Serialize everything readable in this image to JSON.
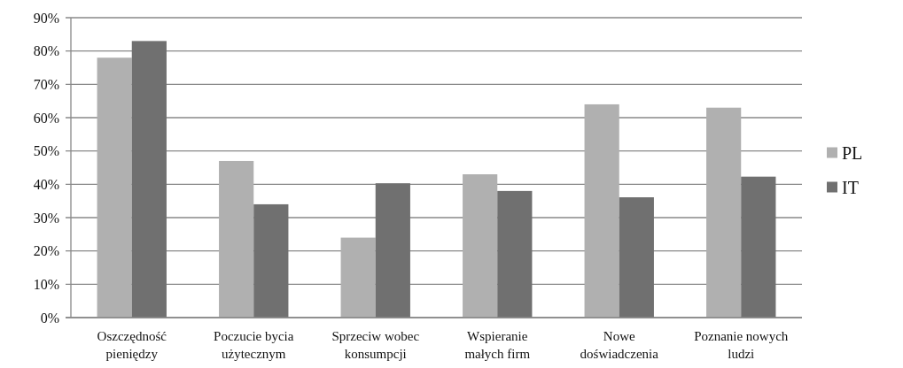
{
  "chart_data": {
    "type": "bar",
    "categories": [
      "Oszczędność pieniędzy",
      "Poczucie bycia użytecznym",
      "Sprzeciw wobec konsumpcji",
      "Wspieranie małych firm",
      "Nowe doświadczenia",
      "Poznanie nowych ludzi"
    ],
    "series": [
      {
        "name": "PL",
        "color": "#b0b0b0",
        "values": [
          78,
          47,
          24,
          43,
          64,
          63
        ]
      },
      {
        "name": "IT",
        "color": "#707070",
        "values": [
          83,
          34,
          40.3,
          38,
          36.1,
          42.3
        ]
      }
    ],
    "ylim": [
      0,
      90
    ],
    "yticks": [
      {
        "value": 0,
        "label": "0%"
      },
      {
        "value": 10,
        "label": "10%"
      },
      {
        "value": 20,
        "label": "20%"
      },
      {
        "value": 30,
        "label": "30%"
      },
      {
        "value": 40,
        "label": "40%"
      },
      {
        "value": 50,
        "label": "50%"
      },
      {
        "value": 60,
        "label": "60%"
      },
      {
        "value": 70,
        "label": "70%"
      },
      {
        "value": 80,
        "label": "80%"
      },
      {
        "value": 90,
        "label": "90%"
      }
    ],
    "grid": "y",
    "legend": "right"
  }
}
